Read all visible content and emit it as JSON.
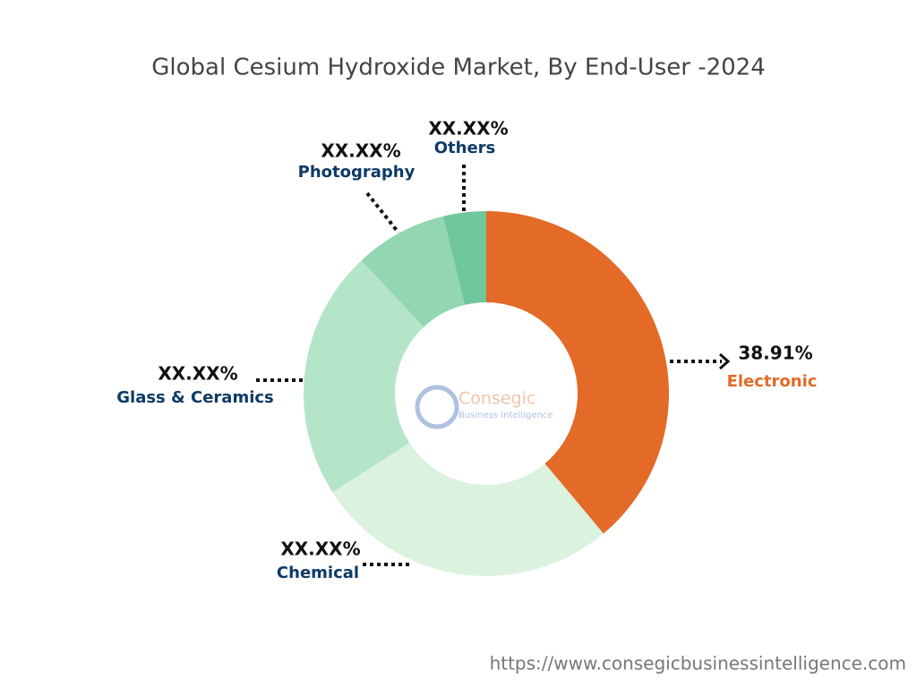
{
  "chart_data": {
    "type": "donut",
    "title": "Global Cesium Hydroxide Market, By End-User -2024",
    "categories": [
      "Electronic",
      "Chemical",
      "Glass & Ceramics",
      "Photography",
      "Others"
    ],
    "values": [
      38.91,
      27.0,
      22.1,
      8.2,
      3.79
    ],
    "value_labels": [
      "38.91%",
      "XX.XX%",
      "XX.XX%",
      "XX.XX%",
      "XX.XX%"
    ],
    "colors": [
      "#e36a27",
      "#daf2de",
      "#b5e5c8",
      "#93d6b2",
      "#6fc79b"
    ],
    "logo_text": [
      "Consegic",
      "Business Intelligence"
    ],
    "source": "https://www.consegicbusinessintelligence.com"
  }
}
